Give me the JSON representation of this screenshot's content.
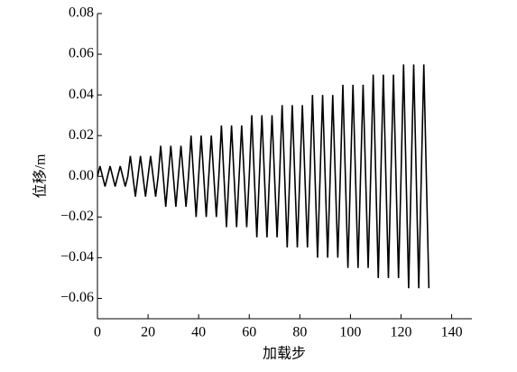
{
  "chart_data": {
    "type": "line",
    "x_label": "加载步",
    "y_label": "位移/m",
    "x": [
      0,
      1,
      2,
      3,
      4,
      5,
      6,
      7,
      8,
      9,
      10,
      11,
      12,
      13,
      14,
      15,
      16,
      17,
      18,
      19,
      20,
      21,
      22,
      23,
      24,
      25,
      26,
      27,
      28,
      29,
      30,
      31,
      32,
      33,
      34,
      35,
      36,
      37,
      38,
      39,
      40,
      41,
      42,
      43,
      44,
      45,
      46,
      47,
      48,
      49,
      50,
      51,
      52,
      53,
      54,
      55,
      56,
      57,
      58,
      59,
      60,
      61,
      62,
      63,
      64,
      65,
      66,
      67,
      68,
      69,
      70,
      71,
      72,
      73,
      74,
      75,
      76,
      77,
      78,
      79,
      80,
      81,
      82,
      83,
      84,
      85,
      86,
      87,
      88,
      89,
      90,
      91,
      92,
      93,
      94,
      95,
      96,
      97,
      98,
      99,
      100,
      101,
      102,
      103,
      104,
      105,
      106,
      107,
      108,
      109,
      110,
      111,
      112,
      113,
      114,
      115,
      116,
      117,
      118,
      119,
      120,
      121,
      122,
      123,
      124,
      125,
      126,
      127,
      128,
      129,
      130,
      131
    ],
    "series": [
      {
        "color": "#000000",
        "values": [
          0,
          0.005,
          0,
          -0.005,
          0,
          0.005,
          0,
          -0.005,
          0,
          0.005,
          0,
          -0.005,
          0,
          0.01,
          0,
          -0.01,
          0,
          0.01,
          0,
          -0.01,
          0,
          0.01,
          0,
          -0.01,
          0,
          0.015,
          0,
          -0.015,
          0,
          0.015,
          0,
          -0.015,
          0,
          0.015,
          0,
          -0.015,
          0,
          0.02,
          0,
          -0.02,
          0,
          0.02,
          0,
          -0.02,
          0,
          0.02,
          0,
          -0.02,
          0,
          0.025,
          0,
          -0.025,
          0,
          0.025,
          0,
          -0.025,
          0,
          0.025,
          0,
          -0.025,
          0,
          0.03,
          0,
          -0.03,
          0,
          0.03,
          0,
          -0.03,
          0,
          0.03,
          0,
          -0.03,
          0,
          0.035,
          0,
          -0.035,
          0,
          0.035,
          0,
          -0.035,
          0,
          0.035,
          0,
          -0.035,
          0,
          0.04,
          0,
          -0.04,
          0,
          0.04,
          0,
          -0.04,
          0,
          0.04,
          0,
          -0.04,
          0,
          0.045,
          0,
          -0.045,
          0,
          0.045,
          0,
          -0.045,
          0,
          0.045,
          0,
          -0.045,
          0,
          0.05,
          0,
          -0.05,
          0,
          0.05,
          0,
          -0.05,
          0,
          0.05,
          0,
          -0.05,
          0,
          0.055,
          0,
          -0.055,
          0,
          0.055,
          0,
          -0.055,
          0,
          0.055,
          0,
          -0.055
        ]
      }
    ],
    "xlim": [
      0,
      148
    ],
    "xticks": [
      0,
      20,
      40,
      60,
      80,
      100,
      120,
      140
    ],
    "ylim": [
      -0.07,
      0.08
    ],
    "yticks": [
      0.08,
      0.06,
      0.04,
      0.02,
      {
        "value": 0,
        "label": "0.00"
      },
      {
        "value": -0.02,
        "label": "−0.02"
      },
      {
        "value": -0.04,
        "label": "−0.04"
      },
      {
        "value": -0.06,
        "label": "−0.06"
      }
    ]
  }
}
